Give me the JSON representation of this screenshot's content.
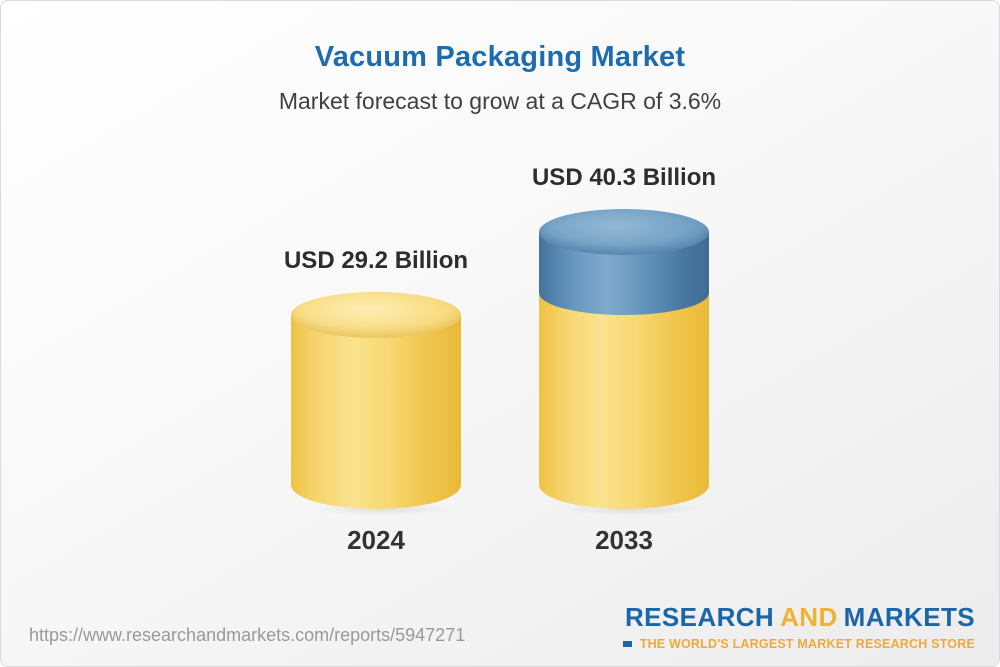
{
  "chart_data": {
    "type": "bar",
    "title": "Vacuum Packaging Market",
    "subtitle": "Market forecast to grow at a CAGR of 3.6%",
    "cagr_percent": 3.6,
    "currency": "USD",
    "unit": "USD Billion",
    "categories": [
      "2024",
      "2033"
    ],
    "values": [
      29.2,
      40.3
    ],
    "value_labels": [
      "USD 29.2 Billion",
      "USD 40.3 Billion"
    ],
    "ylim": [
      0,
      40.3
    ],
    "orientation": "vertical",
    "grid": false,
    "legend": false,
    "bar_style": "3d-cylinder",
    "colors": {
      "bar_2024": "#f6d066",
      "bar_2033_base_segment": "#f6d066",
      "bar_2033_growth_segment": "#5d8eb9",
      "title": "#1e6cb0",
      "subtitle": "#404040",
      "labels": "#2d2d2d"
    }
  },
  "footer": {
    "source_url": "https://www.researchandmarkets.com/reports/5947271",
    "logo": {
      "word_research": "RESEARCH",
      "word_and": "AND",
      "word_markets": "MARKETS",
      "tagline": "THE WORLD'S LARGEST MARKET RESEARCH STORE",
      "brand_blue": "#1b66a9",
      "brand_gold": "#f0b233"
    }
  }
}
